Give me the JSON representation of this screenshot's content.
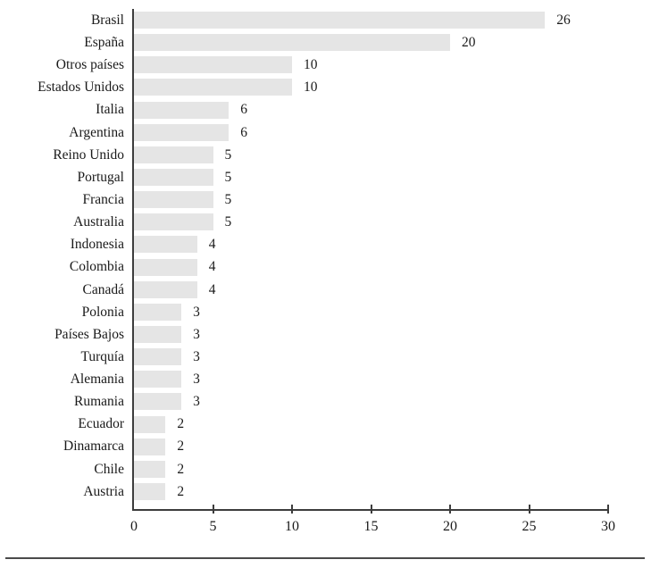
{
  "chart_data": {
    "type": "bar",
    "orientation": "horizontal",
    "title": "",
    "xlabel": "",
    "ylabel": "",
    "categories": [
      "Brasil",
      "España",
      "Otros países",
      "Estados Unidos",
      "Italia",
      "Argentina",
      "Reino Unido",
      "Portugal",
      "Francia",
      "Australia",
      "Indonesia",
      "Colombia",
      "Canadá",
      "Polonia",
      "Países Bajos",
      "Turquía",
      "Alemania",
      "Rumania",
      "Ecuador",
      "Dinamarca",
      "Chile",
      "Austria"
    ],
    "values": [
      26,
      20,
      10,
      10,
      6,
      6,
      5,
      5,
      5,
      5,
      4,
      4,
      4,
      3,
      3,
      3,
      3,
      3,
      2,
      2,
      2,
      2
    ],
    "value_labels_shown": true,
    "xlim": [
      0,
      30
    ],
    "xticks": [
      0,
      5,
      10,
      15,
      20,
      25,
      30
    ],
    "grid": "off",
    "legend": "none",
    "colors": {
      "bar_fill": "#e5e5e5",
      "axis_line": "#3d3d3d",
      "text": "#1a1a1a",
      "separator_rule": "#4a4a4a"
    }
  }
}
